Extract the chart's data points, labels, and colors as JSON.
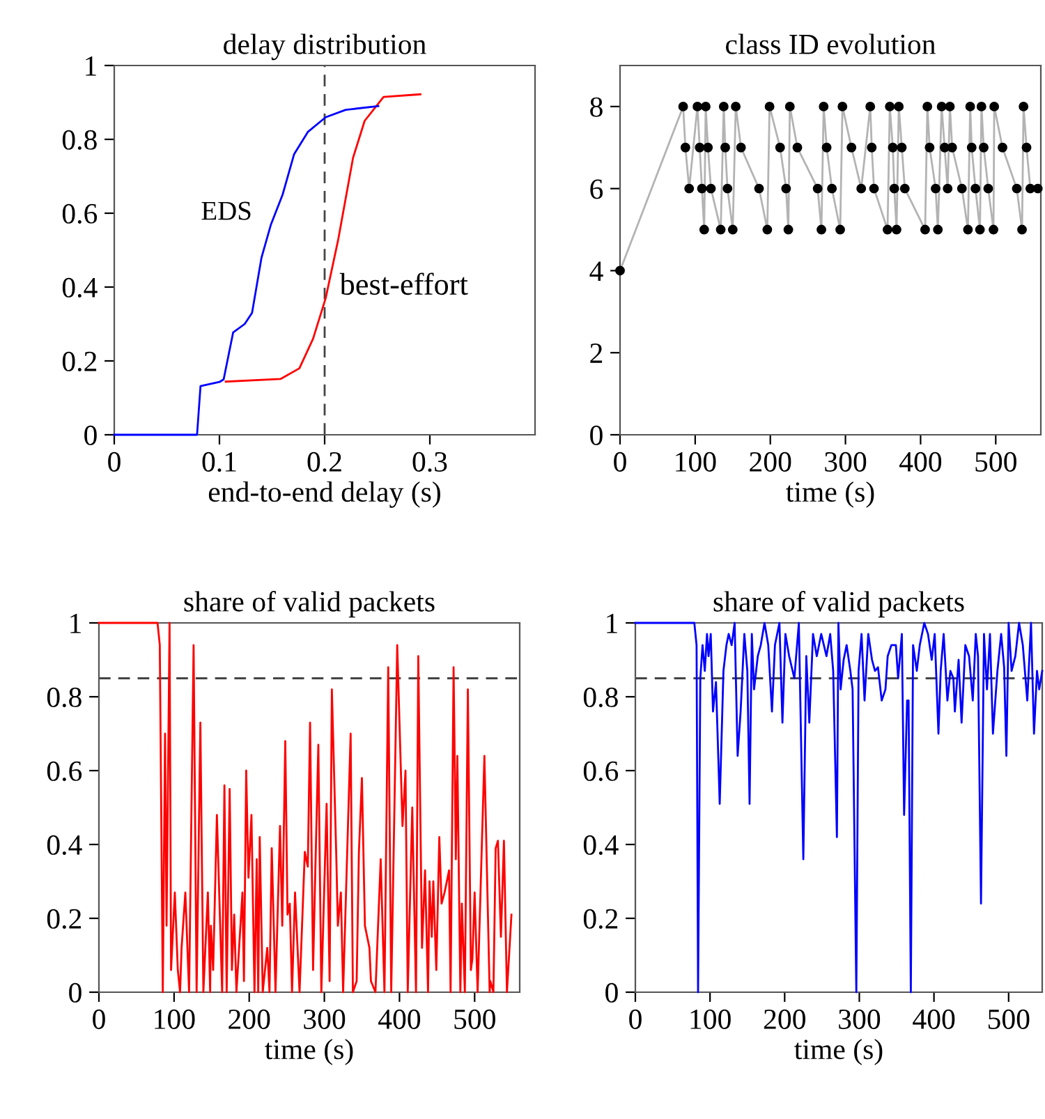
{
  "chart_data": [
    {
      "type": "line",
      "title": "delay distribution",
      "xlabel": "end-to-end delay (s)",
      "xlim": [
        0,
        0.4
      ],
      "ylim": [
        0,
        1
      ],
      "xticks": [
        0,
        0.1,
        0.2,
        0.3
      ],
      "yticks": [
        0,
        0.2,
        0.4,
        0.6,
        0.8,
        1
      ],
      "marker": "none",
      "line_style": "solid",
      "grid": false,
      "legend": false,
      "ref_lines": [
        {
          "axis": "x",
          "value": 0.2,
          "color": "#444444",
          "line_style": "dashed"
        }
      ],
      "series": [
        {
          "name": "EDS",
          "color": "#0000ff",
          "x": [
            0,
            0.0787,
            0.082,
            0.1,
            0.104,
            0.113,
            0.124,
            0.131,
            0.14,
            0.149,
            0.16,
            0.171,
            0.184,
            0.201,
            0.22,
            0.251
          ],
          "values": [
            0,
            0,
            0.132,
            0.143,
            0.15,
            0.277,
            0.3,
            0.33,
            0.48,
            0.57,
            0.65,
            0.76,
            0.82,
            0.86,
            0.88,
            0.89
          ]
        },
        {
          "name": "best-effort",
          "color": "#ff0000",
          "x": [
            0.106,
            0.158,
            0.176,
            0.189,
            0.201,
            0.213,
            0.227,
            0.238,
            0.256,
            0.291
          ],
          "values": [
            0.144,
            0.151,
            0.18,
            0.26,
            0.37,
            0.53,
            0.75,
            0.85,
            0.915,
            0.922
          ]
        }
      ]
    },
    {
      "type": "line",
      "title": "class ID evolution",
      "xlabel": "time (s)",
      "xlim": [
        0,
        560
      ],
      "ylim": [
        0,
        9
      ],
      "xticks": [
        0,
        100,
        200,
        300,
        400,
        500
      ],
      "yticks": [
        0,
        2,
        4,
        6,
        8
      ],
      "grid": false,
      "legend": false,
      "series": [
        {
          "type": "line",
          "marker": "none",
          "color": "#b3b3b3",
          "x": [
            0,
            84,
            87,
            92,
            103,
            106,
            109,
            112,
            114,
            117,
            121,
            134,
            138,
            140,
            143,
            150,
            154,
            161,
            185,
            196,
            199,
            213,
            221,
            224,
            226,
            236,
            263,
            268,
            271,
            275,
            282,
            293,
            296,
            308,
            321,
            333,
            335,
            338,
            356,
            359,
            363,
            365,
            368,
            371,
            375,
            379,
            406,
            409,
            412,
            420,
            423,
            428,
            432,
            436,
            439,
            442,
            455,
            463,
            466,
            468,
            473,
            479,
            481,
            484,
            490,
            497,
            498,
            509,
            528,
            535,
            537,
            541,
            546,
            556
          ],
          "values": [
            4,
            8,
            7,
            6,
            8,
            7,
            6,
            5,
            8,
            7,
            6,
            5,
            8,
            7,
            6,
            5,
            8,
            7,
            6,
            5,
            8,
            7,
            6,
            5,
            8,
            7,
            6,
            5,
            8,
            7,
            6,
            5,
            8,
            7,
            6,
            8,
            7,
            6,
            5,
            8,
            7,
            6,
            5,
            8,
            7,
            6,
            5,
            8,
            7,
            6,
            5,
            8,
            7,
            6,
            8,
            7,
            6,
            5,
            8,
            7,
            6,
            5,
            8,
            7,
            6,
            5,
            8,
            7,
            6,
            5,
            8,
            7,
            6,
            6
          ]
        },
        {
          "type": "scatter",
          "marker": "circle",
          "color": "#000000",
          "x": [
            0,
            84,
            87,
            92,
            103,
            106,
            109,
            112,
            114,
            117,
            121,
            134,
            138,
            140,
            143,
            150,
            154,
            161,
            185,
            196,
            199,
            213,
            221,
            224,
            226,
            236,
            263,
            268,
            271,
            275,
            282,
            293,
            296,
            308,
            321,
            333,
            335,
            338,
            356,
            359,
            363,
            365,
            368,
            371,
            375,
            379,
            406,
            409,
            412,
            420,
            423,
            428,
            432,
            436,
            439,
            442,
            455,
            463,
            466,
            468,
            473,
            479,
            481,
            484,
            490,
            497,
            498,
            509,
            528,
            535,
            537,
            541,
            546,
            556
          ],
          "values": [
            4,
            8,
            7,
            6,
            8,
            7,
            6,
            5,
            8,
            7,
            6,
            5,
            8,
            7,
            6,
            5,
            8,
            7,
            6,
            5,
            8,
            7,
            6,
            5,
            8,
            7,
            6,
            5,
            8,
            7,
            6,
            5,
            8,
            7,
            6,
            8,
            7,
            6,
            5,
            8,
            7,
            6,
            5,
            8,
            7,
            6,
            5,
            8,
            7,
            6,
            5,
            8,
            7,
            6,
            8,
            7,
            6,
            5,
            8,
            7,
            6,
            5,
            8,
            7,
            6,
            5,
            8,
            7,
            6,
            5,
            8,
            7,
            6,
            6
          ]
        }
      ]
    },
    {
      "type": "line",
      "title": "share of valid packets",
      "xlabel": "time (s)",
      "xlim": [
        0,
        560
      ],
      "ylim": [
        0,
        1
      ],
      "xticks": [
        0,
        100,
        200,
        300,
        400,
        500
      ],
      "yticks": [
        0,
        0.2,
        0.4,
        0.6,
        0.8,
        1
      ],
      "marker": "none",
      "grid": false,
      "legend": false,
      "ref_lines": [
        {
          "axis": "y",
          "value": 0.85,
          "color": "#444444",
          "line_style": "dashed"
        }
      ],
      "series": [
        {
          "color": "#ff0000",
          "x": [
            0,
            78,
            81,
            85,
            88,
            90,
            94,
            96,
            101,
            105,
            108,
            110,
            115,
            120,
            126,
            130,
            135,
            139,
            145,
            148,
            149,
            152,
            157,
            164,
            167,
            170,
            174,
            177,
            180,
            183,
            191,
            193,
            196,
            199,
            203,
            207,
            210,
            212,
            214,
            218,
            224,
            227,
            230,
            235,
            241,
            244,
            248,
            251,
            254,
            257,
            261,
            267,
            274,
            278,
            281,
            285,
            288,
            292,
            296,
            303,
            307,
            310,
            316,
            318,
            322,
            325,
            335,
            338,
            343,
            346,
            350,
            354,
            357,
            360,
            362,
            368,
            375,
            380,
            385,
            389,
            397,
            404,
            408,
            411,
            417,
            422,
            425,
            430,
            434,
            438,
            440,
            443,
            445,
            449,
            453,
            456,
            460,
            466,
            468,
            472,
            475,
            477,
            481,
            483,
            487,
            491,
            495,
            497,
            500,
            504,
            513,
            520,
            521,
            525,
            528,
            531,
            535,
            539,
            543,
            549
          ],
          "values": [
            1,
            1,
            0.94,
            0,
            0.7,
            0.18,
            1,
            0.06,
            0.27,
            0.06,
            0,
            0.12,
            0.27,
            0,
            0.94,
            0,
            0.73,
            0,
            0.27,
            0,
            0.18,
            0.06,
            0.48,
            0,
            0.56,
            0,
            0.55,
            0.06,
            0.21,
            0,
            0.27,
            0.03,
            0.6,
            0.31,
            0.48,
            0,
            0.36,
            0,
            0.42,
            0,
            0.12,
            0,
            0.39,
            0,
            0.45,
            0.18,
            0.68,
            0.21,
            0.24,
            0,
            0.27,
            0,
            0.38,
            0.34,
            0.73,
            0.06,
            0.33,
            0.67,
            0,
            0.51,
            0.03,
            0.82,
            0.36,
            0.18,
            0.27,
            0,
            0.7,
            0,
            0.03,
            0.38,
            0.58,
            0.18,
            0.15,
            0.12,
            0.03,
            0,
            0.36,
            0,
            0.88,
            0,
            0.94,
            0.45,
            0.6,
            0,
            0.5,
            0,
            0.91,
            0.12,
            0.33,
            0,
            0.3,
            0.15,
            0.3,
            0.06,
            0.42,
            0.24,
            0.27,
            0.33,
            0,
            0.88,
            0.36,
            0.64,
            0,
            0.24,
            0,
            0.82,
            0.06,
            0.09,
            0.27,
            0,
            0.64,
            0,
            0.03,
            0,
            0.39,
            0.41,
            0.15,
            0.41,
            0,
            0.21
          ]
        }
      ]
    },
    {
      "type": "line",
      "title": "share of valid packets",
      "xlabel": "time (s)",
      "xlim": [
        0,
        545
      ],
      "ylim": [
        0,
        1
      ],
      "xticks": [
        0,
        100,
        200,
        300,
        400,
        500
      ],
      "yticks": [
        0,
        0.2,
        0.4,
        0.6,
        0.8,
        1
      ],
      "marker": "none",
      "grid": false,
      "legend": false,
      "ref_lines": [
        {
          "axis": "y",
          "value": 0.85,
          "color": "#444444",
          "line_style": "dashed"
        }
      ],
      "series": [
        {
          "color": "#0000ff",
          "x": [
            0,
            79,
            82,
            84,
            87,
            90,
            93,
            96,
            98,
            101,
            104,
            108,
            113,
            118,
            122,
            125,
            129,
            133,
            137,
            141,
            146,
            150,
            153,
            156,
            159,
            164,
            168,
            173,
            178,
            183,
            187,
            193,
            197,
            201,
            206,
            213,
            219,
            225,
            229,
            233,
            238,
            243,
            249,
            256,
            261,
            265,
            270,
            272,
            275,
            279,
            283,
            288,
            291,
            296,
            299,
            303,
            307,
            312,
            317,
            321,
            325,
            330,
            335,
            338,
            343,
            349,
            352,
            357,
            360,
            364,
            366,
            369,
            372,
            377,
            381,
            387,
            392,
            397,
            401,
            406,
            409,
            413,
            418,
            422,
            426,
            428,
            433,
            437,
            442,
            447,
            452,
            456,
            459,
            463,
            467,
            471,
            475,
            479,
            485,
            490,
            494,
            497,
            500,
            504,
            509,
            514,
            519,
            525,
            530,
            534,
            538,
            541,
            545
          ],
          "values": [
            1,
            1,
            0.94,
            0,
            0.85,
            0.94,
            0.87,
            0.97,
            0.91,
            0.97,
            0.76,
            0.84,
            0.51,
            0.87,
            0.94,
            0.97,
            0.94,
            1,
            0.64,
            0.76,
            0.97,
            0.87,
            0.51,
            0.97,
            0.82,
            0.91,
            0.94,
            1,
            0.94,
            0.76,
            0.94,
            1,
            0.73,
            0.97,
            0.91,
            0.85,
            1,
            0.36,
            0.91,
            0.73,
            0.97,
            0.91,
            0.97,
            0.91,
            0.97,
            0.87,
            0.42,
            1,
            0.82,
            0.9,
            0.94,
            0.87,
            0.82,
            0,
            0.87,
            0.97,
            0.79,
            0.97,
            0.9,
            0.87,
            0.88,
            0.79,
            0.82,
            0.91,
            0.94,
            0.94,
            0.85,
            0.97,
            0.48,
            0.79,
            0.79,
            0,
            0.94,
            0.87,
            0.94,
            1,
            0.97,
            0.9,
            0.97,
            0.7,
            0.87,
            0.97,
            0.79,
            0.87,
            0.85,
            0.76,
            0.9,
            0.73,
            0.94,
            0.91,
            0.79,
            0.97,
            0.91,
            0.24,
            0.97,
            0.82,
            0.97,
            0.7,
            0.87,
            0.97,
            0.88,
            0.64,
            1,
            0.87,
            0.91,
            1,
            0.94,
            0.79,
            1,
            0.7,
            0.87,
            0.82,
            0.87
          ]
        }
      ]
    }
  ]
}
